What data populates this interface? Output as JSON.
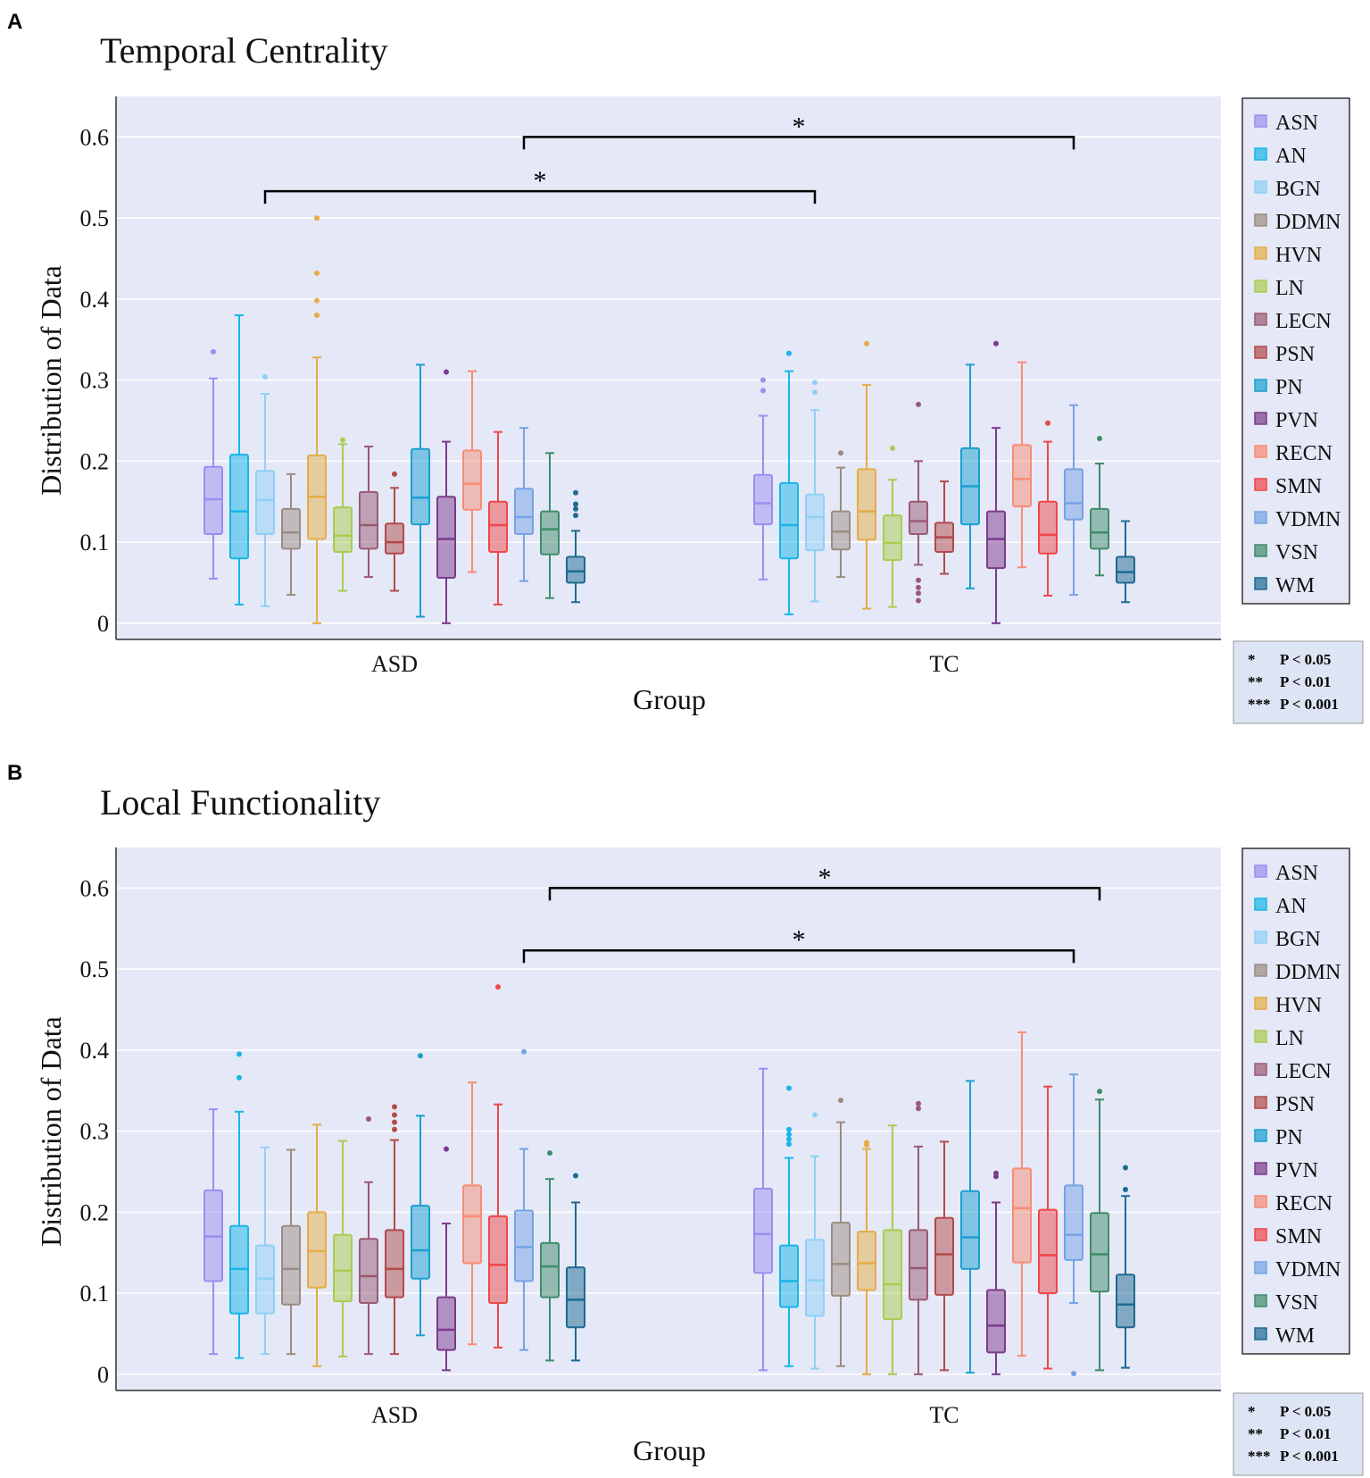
{
  "panels": [
    {
      "letter": "A"
    },
    {
      "letter": "B"
    }
  ],
  "legend_notes": [
    {
      "stars": "*",
      "text": "P < 0.05"
    },
    {
      "stars": "**",
      "text": "P < 0.01"
    },
    {
      "stars": "***",
      "text": "P < 0.001"
    }
  ],
  "colors": {
    "plot_bg": "#e5e8f6",
    "networks": {
      "ASN": "#9b8ef0",
      "AN": "#17b6e8",
      "BGN": "#8fd0f7",
      "DDMN": "#9b8c82",
      "HVN": "#e5ad45",
      "LN": "#a9cc50",
      "LECN": "#9a5a74",
      "PSN": "#b24a4a",
      "PN": "#1a9fd0",
      "PVN": "#7b3a8c",
      "RECN": "#f88c74",
      "SMN": "#ee4748",
      "VDMN": "#76a2e6",
      "VSN": "#3f8c6a",
      "WM": "#1e6a92"
    }
  },
  "chart_data": [
    {
      "type": "box",
      "title": "Temporal Centrality",
      "xlabel": "Group",
      "ylabel": "Distribution of Data",
      "ylim": [
        -0.02,
        0.65
      ],
      "yticks": [
        "0",
        "0.1",
        "0.2",
        "0.3",
        "0.4",
        "0.5",
        "0.6"
      ],
      "yticks_values": [
        0,
        0.1,
        0.2,
        0.3,
        0.4,
        0.5,
        0.6
      ],
      "legend": [
        "ASN",
        "AN",
        "BGN",
        "DDMN",
        "HVN",
        "LN",
        "LECN",
        "PSN",
        "PN",
        "PVN",
        "RECN",
        "SMN",
        "VDMN",
        "VSN",
        "WM"
      ],
      "groups": [
        {
          "name": "ASD",
          "boxes": [
            {
              "series": "ASN",
              "min": 0.055,
              "q1": 0.11,
              "median": 0.153,
              "q3": 0.193,
              "max": 0.302,
              "outliers": [
                0.335
              ]
            },
            {
              "series": "AN",
              "min": 0.023,
              "q1": 0.08,
              "median": 0.138,
              "q3": 0.208,
              "max": 0.38,
              "outliers": []
            },
            {
              "series": "BGN",
              "min": 0.021,
              "q1": 0.11,
              "median": 0.152,
              "q3": 0.188,
              "max": 0.283,
              "outliers": [
                0.304
              ]
            },
            {
              "series": "DDMN",
              "min": 0.035,
              "q1": 0.092,
              "median": 0.112,
              "q3": 0.141,
              "max": 0.184,
              "outliers": []
            },
            {
              "series": "HVN",
              "min": 0.0,
              "q1": 0.104,
              "median": 0.156,
              "q3": 0.207,
              "max": 0.328,
              "outliers": [
                0.38,
                0.398,
                0.432,
                0.5
              ]
            },
            {
              "series": "LN",
              "min": 0.04,
              "q1": 0.088,
              "median": 0.108,
              "q3": 0.143,
              "max": 0.221,
              "outliers": [
                0.226
              ]
            },
            {
              "series": "LECN",
              "min": 0.057,
              "q1": 0.092,
              "median": 0.121,
              "q3": 0.162,
              "max": 0.218,
              "outliers": []
            },
            {
              "series": "PSN",
              "min": 0.04,
              "q1": 0.086,
              "median": 0.1,
              "q3": 0.123,
              "max": 0.167,
              "outliers": [
                0.184
              ]
            },
            {
              "series": "PN",
              "min": 0.008,
              "q1": 0.122,
              "median": 0.155,
              "q3": 0.215,
              "max": 0.319,
              "outliers": []
            },
            {
              "series": "PVN",
              "min": 0.0,
              "q1": 0.056,
              "median": 0.104,
              "q3": 0.156,
              "max": 0.224,
              "outliers": [
                0.31
              ]
            },
            {
              "series": "RECN",
              "min": 0.063,
              "q1": 0.14,
              "median": 0.172,
              "q3": 0.213,
              "max": 0.311,
              "outliers": []
            },
            {
              "series": "SMN",
              "min": 0.023,
              "q1": 0.088,
              "median": 0.121,
              "q3": 0.15,
              "max": 0.236,
              "outliers": []
            },
            {
              "series": "VDMN",
              "min": 0.052,
              "q1": 0.11,
              "median": 0.131,
              "q3": 0.166,
              "max": 0.241,
              "outliers": []
            },
            {
              "series": "VSN",
              "min": 0.031,
              "q1": 0.085,
              "median": 0.116,
              "q3": 0.138,
              "max": 0.21,
              "outliers": []
            },
            {
              "series": "WM",
              "min": 0.026,
              "q1": 0.05,
              "median": 0.064,
              "q3": 0.082,
              "max": 0.114,
              "outliers": [
                0.133,
                0.141,
                0.147,
                0.161
              ]
            }
          ]
        },
        {
          "name": "TC",
          "boxes": [
            {
              "series": "ASN",
              "min": 0.054,
              "q1": 0.122,
              "median": 0.148,
              "q3": 0.183,
              "max": 0.256,
              "outliers": [
                0.287,
                0.3
              ]
            },
            {
              "series": "AN",
              "min": 0.011,
              "q1": 0.08,
              "median": 0.121,
              "q3": 0.173,
              "max": 0.311,
              "outliers": [
                0.333
              ]
            },
            {
              "series": "BGN",
              "min": 0.027,
              "q1": 0.09,
              "median": 0.131,
              "q3": 0.159,
              "max": 0.263,
              "outliers": [
                0.285,
                0.297
              ]
            },
            {
              "series": "DDMN",
              "min": 0.057,
              "q1": 0.091,
              "median": 0.113,
              "q3": 0.138,
              "max": 0.192,
              "outliers": [
                0.21
              ]
            },
            {
              "series": "HVN",
              "min": 0.018,
              "q1": 0.103,
              "median": 0.138,
              "q3": 0.19,
              "max": 0.294,
              "outliers": [
                0.345
              ]
            },
            {
              "series": "LN",
              "min": 0.02,
              "q1": 0.078,
              "median": 0.099,
              "q3": 0.133,
              "max": 0.177,
              "outliers": [
                0.216
              ]
            },
            {
              "series": "LECN",
              "min": 0.072,
              "q1": 0.11,
              "median": 0.126,
              "q3": 0.15,
              "max": 0.2,
              "outliers": [
                0.028,
                0.037,
                0.044,
                0.053,
                0.27
              ]
            },
            {
              "series": "PSN",
              "min": 0.061,
              "q1": 0.088,
              "median": 0.106,
              "q3": 0.124,
              "max": 0.175,
              "outliers": []
            },
            {
              "series": "PN",
              "min": 0.043,
              "q1": 0.122,
              "median": 0.169,
              "q3": 0.216,
              "max": 0.319,
              "outliers": []
            },
            {
              "series": "PVN",
              "min": 0.0,
              "q1": 0.068,
              "median": 0.104,
              "q3": 0.138,
              "max": 0.241,
              "outliers": [
                0.345
              ]
            },
            {
              "series": "RECN",
              "min": 0.069,
              "q1": 0.144,
              "median": 0.178,
              "q3": 0.22,
              "max": 0.322,
              "outliers": []
            },
            {
              "series": "SMN",
              "min": 0.034,
              "q1": 0.086,
              "median": 0.109,
              "q3": 0.15,
              "max": 0.224,
              "outliers": [
                0.247
              ]
            },
            {
              "series": "VDMN",
              "min": 0.035,
              "q1": 0.128,
              "median": 0.148,
              "q3": 0.19,
              "max": 0.269,
              "outliers": []
            },
            {
              "series": "VSN",
              "min": 0.059,
              "q1": 0.092,
              "median": 0.112,
              "q3": 0.141,
              "max": 0.197,
              "outliers": [
                0.228
              ]
            },
            {
              "series": "WM",
              "min": 0.026,
              "q1": 0.05,
              "median": 0.063,
              "q3": 0.082,
              "max": 0.126,
              "outliers": []
            }
          ]
        }
      ],
      "significance": [
        {
          "from_group": "ASD",
          "from_series": "VDMN",
          "to_group": "TC",
          "to_series": "VDMN",
          "y": 0.6,
          "label": "*"
        },
        {
          "from_group": "ASD",
          "from_series": "BGN",
          "to_group": "TC",
          "to_series": "BGN",
          "y": 0.533,
          "label": "*"
        }
      ]
    },
    {
      "type": "box",
      "title": "Local Functionality",
      "xlabel": "Group",
      "ylabel": "Distribution of Data",
      "ylim": [
        -0.02,
        0.65
      ],
      "yticks": [
        "0",
        "0.1",
        "0.2",
        "0.3",
        "0.4",
        "0.5",
        "0.6"
      ],
      "yticks_values": [
        0,
        0.1,
        0.2,
        0.3,
        0.4,
        0.5,
        0.6
      ],
      "legend": [
        "ASN",
        "AN",
        "BGN",
        "DDMN",
        "HVN",
        "LN",
        "LECN",
        "PSN",
        "PN",
        "PVN",
        "RECN",
        "SMN",
        "VDMN",
        "VSN",
        "WM"
      ],
      "groups": [
        {
          "name": "ASD",
          "boxes": [
            {
              "series": "ASN",
              "min": 0.025,
              "q1": 0.115,
              "median": 0.17,
              "q3": 0.227,
              "max": 0.327,
              "outliers": []
            },
            {
              "series": "AN",
              "min": 0.02,
              "q1": 0.075,
              "median": 0.13,
              "q3": 0.183,
              "max": 0.324,
              "outliers": [
                0.366,
                0.395
              ]
            },
            {
              "series": "BGN",
              "min": 0.025,
              "q1": 0.075,
              "median": 0.118,
              "q3": 0.159,
              "max": 0.28,
              "outliers": []
            },
            {
              "series": "DDMN",
              "min": 0.025,
              "q1": 0.086,
              "median": 0.13,
              "q3": 0.183,
              "max": 0.277,
              "outliers": []
            },
            {
              "series": "HVN",
              "min": 0.01,
              "q1": 0.107,
              "median": 0.152,
              "q3": 0.2,
              "max": 0.308,
              "outliers": []
            },
            {
              "series": "LN",
              "min": 0.022,
              "q1": 0.09,
              "median": 0.128,
              "q3": 0.172,
              "max": 0.288,
              "outliers": []
            },
            {
              "series": "LECN",
              "min": 0.025,
              "q1": 0.088,
              "median": 0.121,
              "q3": 0.167,
              "max": 0.237,
              "outliers": [
                0.315
              ]
            },
            {
              "series": "PSN",
              "min": 0.025,
              "q1": 0.095,
              "median": 0.13,
              "q3": 0.178,
              "max": 0.289,
              "outliers": [
                0.302,
                0.311,
                0.32,
                0.33
              ]
            },
            {
              "series": "PN",
              "min": 0.048,
              "q1": 0.118,
              "median": 0.153,
              "q3": 0.208,
              "max": 0.319,
              "outliers": [
                0.393
              ]
            },
            {
              "series": "PVN",
              "min": 0.005,
              "q1": 0.03,
              "median": 0.055,
              "q3": 0.095,
              "max": 0.186,
              "outliers": [
                0.278
              ]
            },
            {
              "series": "RECN",
              "min": 0.037,
              "q1": 0.137,
              "median": 0.195,
              "q3": 0.233,
              "max": 0.36,
              "outliers": []
            },
            {
              "series": "SMN",
              "min": 0.033,
              "q1": 0.088,
              "median": 0.135,
              "q3": 0.195,
              "max": 0.333,
              "outliers": [
                0.478
              ]
            },
            {
              "series": "VDMN",
              "min": 0.03,
              "q1": 0.115,
              "median": 0.157,
              "q3": 0.202,
              "max": 0.278,
              "outliers": [
                0.398
              ]
            },
            {
              "series": "VSN",
              "min": 0.017,
              "q1": 0.095,
              "median": 0.133,
              "q3": 0.162,
              "max": 0.241,
              "outliers": [
                0.273
              ]
            },
            {
              "series": "WM",
              "min": 0.017,
              "q1": 0.058,
              "median": 0.092,
              "q3": 0.132,
              "max": 0.212,
              "outliers": [
                0.245
              ]
            }
          ]
        },
        {
          "name": "TC",
          "boxes": [
            {
              "series": "ASN",
              "min": 0.005,
              "q1": 0.125,
              "median": 0.173,
              "q3": 0.229,
              "max": 0.377,
              "outliers": []
            },
            {
              "series": "AN",
              "min": 0.01,
              "q1": 0.083,
              "median": 0.115,
              "q3": 0.159,
              "max": 0.267,
              "outliers": [
                0.284,
                0.29,
                0.296,
                0.302,
                0.353
              ]
            },
            {
              "series": "BGN",
              "min": 0.007,
              "q1": 0.072,
              "median": 0.116,
              "q3": 0.166,
              "max": 0.269,
              "outliers": [
                0.32
              ]
            },
            {
              "series": "DDMN",
              "min": 0.01,
              "q1": 0.097,
              "median": 0.136,
              "q3": 0.187,
              "max": 0.311,
              "outliers": [
                0.338
              ]
            },
            {
              "series": "HVN",
              "min": 0.0,
              "q1": 0.104,
              "median": 0.137,
              "q3": 0.176,
              "max": 0.278,
              "outliers": [
                0.283,
                0.286
              ]
            },
            {
              "series": "LN",
              "min": 0.0,
              "q1": 0.068,
              "median": 0.111,
              "q3": 0.178,
              "max": 0.307,
              "outliers": []
            },
            {
              "series": "LECN",
              "min": 0.0,
              "q1": 0.092,
              "median": 0.131,
              "q3": 0.178,
              "max": 0.281,
              "outliers": [
                0.328,
                0.334
              ]
            },
            {
              "series": "PSN",
              "min": 0.005,
              "q1": 0.098,
              "median": 0.148,
              "q3": 0.193,
              "max": 0.287,
              "outliers": []
            },
            {
              "series": "PN",
              "min": 0.002,
              "q1": 0.13,
              "median": 0.169,
              "q3": 0.226,
              "max": 0.362,
              "outliers": []
            },
            {
              "series": "PVN",
              "min": 0.0,
              "q1": 0.027,
              "median": 0.06,
              "q3": 0.104,
              "max": 0.212,
              "outliers": [
                0.244,
                0.248
              ]
            },
            {
              "series": "RECN",
              "min": 0.023,
              "q1": 0.138,
              "median": 0.205,
              "q3": 0.254,
              "max": 0.422,
              "outliers": []
            },
            {
              "series": "SMN",
              "min": 0.007,
              "q1": 0.1,
              "median": 0.147,
              "q3": 0.203,
              "max": 0.355,
              "outliers": []
            },
            {
              "series": "VDMN",
              "min": 0.088,
              "q1": 0.141,
              "median": 0.172,
              "q3": 0.233,
              "max": 0.37,
              "outliers": [
                0.001
              ]
            },
            {
              "series": "VSN",
              "min": 0.005,
              "q1": 0.102,
              "median": 0.148,
              "q3": 0.199,
              "max": 0.339,
              "outliers": [
                0.349
              ]
            },
            {
              "series": "WM",
              "min": 0.008,
              "q1": 0.058,
              "median": 0.086,
              "q3": 0.123,
              "max": 0.22,
              "outliers": [
                0.228,
                0.255
              ]
            }
          ]
        }
      ],
      "significance": [
        {
          "from_group": "ASD",
          "from_series": "VSN",
          "to_group": "TC",
          "to_series": "VSN",
          "y": 0.6,
          "label": "*"
        },
        {
          "from_group": "ASD",
          "from_series": "VDMN",
          "to_group": "TC",
          "to_series": "VDMN",
          "y": 0.523,
          "label": "*"
        }
      ]
    }
  ]
}
